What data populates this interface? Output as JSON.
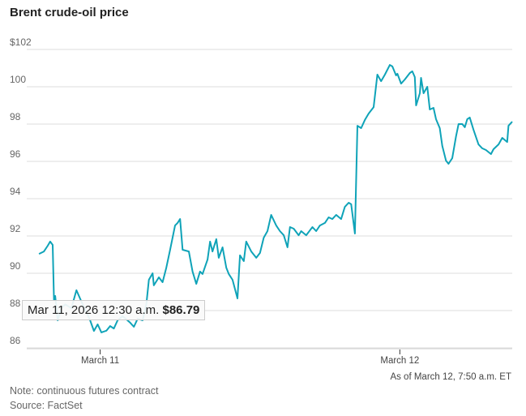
{
  "chart_data": {
    "type": "line",
    "title": "Brent crude-oil price",
    "xlabel": "",
    "ylabel": "",
    "x_unit": "hours since March 11, 2026 00:00",
    "xlim": [
      -5.1,
      33.0
    ],
    "ylim": [
      86,
      102
    ],
    "yticks": [
      {
        "value": 102,
        "label": "$102"
      },
      {
        "value": 100,
        "label": "100"
      },
      {
        "value": 98,
        "label": "98"
      },
      {
        "value": 96,
        "label": "96"
      },
      {
        "value": 94,
        "label": "94"
      },
      {
        "value": 92,
        "label": "92"
      },
      {
        "value": 90,
        "label": "90"
      },
      {
        "value": 88,
        "label": "88"
      },
      {
        "value": 86,
        "label": "86"
      }
    ],
    "xticks": [
      {
        "value": 0,
        "label": "March 11"
      },
      {
        "value": 24,
        "label": "March 12"
      }
    ],
    "grid": true,
    "line_color": "#0fa3b8",
    "series": [
      {
        "name": "Brent crude-oil price",
        "points": [
          [
            -4.9,
            90.91
          ],
          [
            -4.5,
            91.04
          ],
          [
            -4.2,
            91.35
          ],
          [
            -4.0,
            91.57
          ],
          [
            -3.8,
            91.39
          ],
          [
            -3.7,
            88.43
          ],
          [
            -3.6,
            88.65
          ],
          [
            -3.4,
            87.35
          ],
          [
            -3.1,
            88.0
          ],
          [
            -2.8,
            88.2
          ],
          [
            -2.3,
            88.0
          ],
          [
            -1.9,
            88.96
          ],
          [
            -1.5,
            88.35
          ],
          [
            -0.8,
            87.35
          ],
          [
            -0.5,
            86.78
          ],
          [
            -0.2,
            87.13
          ],
          [
            0.1,
            86.7
          ],
          [
            0.5,
            86.79
          ],
          [
            0.8,
            87.04
          ],
          [
            1.1,
            86.91
          ],
          [
            1.4,
            87.35
          ],
          [
            1.8,
            87.57
          ],
          [
            2.4,
            87.22
          ],
          [
            2.7,
            87.0
          ],
          [
            3.0,
            87.43
          ],
          [
            3.4,
            87.35
          ],
          [
            3.7,
            88.22
          ],
          [
            3.9,
            89.52
          ],
          [
            4.2,
            89.87
          ],
          [
            4.3,
            89.22
          ],
          [
            4.7,
            89.65
          ],
          [
            5.0,
            89.39
          ],
          [
            5.3,
            90.17
          ],
          [
            5.6,
            91.13
          ],
          [
            6.0,
            92.43
          ],
          [
            6.2,
            92.57
          ],
          [
            6.4,
            92.78
          ],
          [
            6.6,
            91.13
          ],
          [
            7.1,
            91.04
          ],
          [
            7.4,
            89.96
          ],
          [
            7.7,
            89.3
          ],
          [
            8.0,
            89.96
          ],
          [
            8.2,
            89.83
          ],
          [
            8.6,
            90.61
          ],
          [
            8.8,
            91.57
          ],
          [
            9.0,
            91.04
          ],
          [
            9.3,
            91.7
          ],
          [
            9.5,
            90.7
          ],
          [
            9.8,
            91.26
          ],
          [
            10.1,
            90.17
          ],
          [
            10.3,
            89.83
          ],
          [
            10.6,
            89.52
          ],
          [
            11.0,
            88.52
          ],
          [
            11.2,
            90.83
          ],
          [
            11.5,
            90.52
          ],
          [
            11.7,
            91.57
          ],
          [
            12.1,
            91.04
          ],
          [
            12.5,
            90.7
          ],
          [
            12.8,
            90.96
          ],
          [
            13.1,
            91.78
          ],
          [
            13.4,
            92.13
          ],
          [
            13.7,
            93.0
          ],
          [
            14.1,
            92.43
          ],
          [
            14.4,
            92.13
          ],
          [
            14.7,
            91.91
          ],
          [
            15.0,
            91.26
          ],
          [
            15.2,
            92.35
          ],
          [
            15.5,
            92.26
          ],
          [
            15.9,
            91.91
          ],
          [
            16.1,
            92.13
          ],
          [
            16.5,
            91.91
          ],
          [
            17.0,
            92.35
          ],
          [
            17.3,
            92.13
          ],
          [
            17.6,
            92.43
          ],
          [
            18.0,
            92.57
          ],
          [
            18.3,
            92.87
          ],
          [
            18.6,
            92.78
          ],
          [
            18.9,
            93.0
          ],
          [
            19.3,
            92.78
          ],
          [
            19.6,
            93.43
          ],
          [
            19.9,
            93.65
          ],
          [
            20.1,
            93.57
          ],
          [
            20.4,
            92.0
          ],
          [
            20.6,
            97.78
          ],
          [
            20.9,
            97.65
          ],
          [
            21.2,
            98.09
          ],
          [
            21.5,
            98.43
          ],
          [
            21.9,
            98.78
          ],
          [
            22.2,
            100.52
          ],
          [
            22.5,
            100.17
          ],
          [
            22.8,
            100.52
          ],
          [
            23.2,
            101.04
          ],
          [
            23.4,
            100.96
          ],
          [
            23.7,
            100.48
          ],
          [
            23.8,
            100.57
          ],
          [
            24.1,
            100.04
          ],
          [
            24.4,
            100.26
          ],
          [
            24.8,
            100.61
          ],
          [
            25.0,
            100.7
          ],
          [
            25.2,
            100.39
          ],
          [
            25.3,
            98.87
          ],
          [
            25.6,
            99.52
          ],
          [
            25.7,
            100.35
          ],
          [
            25.9,
            99.52
          ],
          [
            26.2,
            99.87
          ],
          [
            26.4,
            98.65
          ],
          [
            26.7,
            98.74
          ],
          [
            26.9,
            98.13
          ],
          [
            27.2,
            97.65
          ],
          [
            27.4,
            96.7
          ],
          [
            27.7,
            95.91
          ],
          [
            27.9,
            95.74
          ],
          [
            28.2,
            96.04
          ],
          [
            28.5,
            97.22
          ],
          [
            28.7,
            97.87
          ],
          [
            29.0,
            97.87
          ],
          [
            29.2,
            97.7
          ],
          [
            29.4,
            98.13
          ],
          [
            29.6,
            98.22
          ],
          [
            29.9,
            97.57
          ],
          [
            30.3,
            96.78
          ],
          [
            30.6,
            96.57
          ],
          [
            30.9,
            96.48
          ],
          [
            31.3,
            96.26
          ],
          [
            31.5,
            96.52
          ],
          [
            31.9,
            96.78
          ],
          [
            32.2,
            97.13
          ],
          [
            32.6,
            96.91
          ],
          [
            32.7,
            97.78
          ],
          [
            33.0,
            98.0
          ]
        ]
      }
    ],
    "tooltip": {
      "x": 0.5,
      "date": "Mar 11, 2026 12:30 a.m.",
      "value": "$86.79"
    },
    "annotations": {
      "as_of": "As of March 12, 7:50 a.m. ET",
      "note": "Note: continuous futures contract",
      "source": "Source: FactSet"
    }
  }
}
